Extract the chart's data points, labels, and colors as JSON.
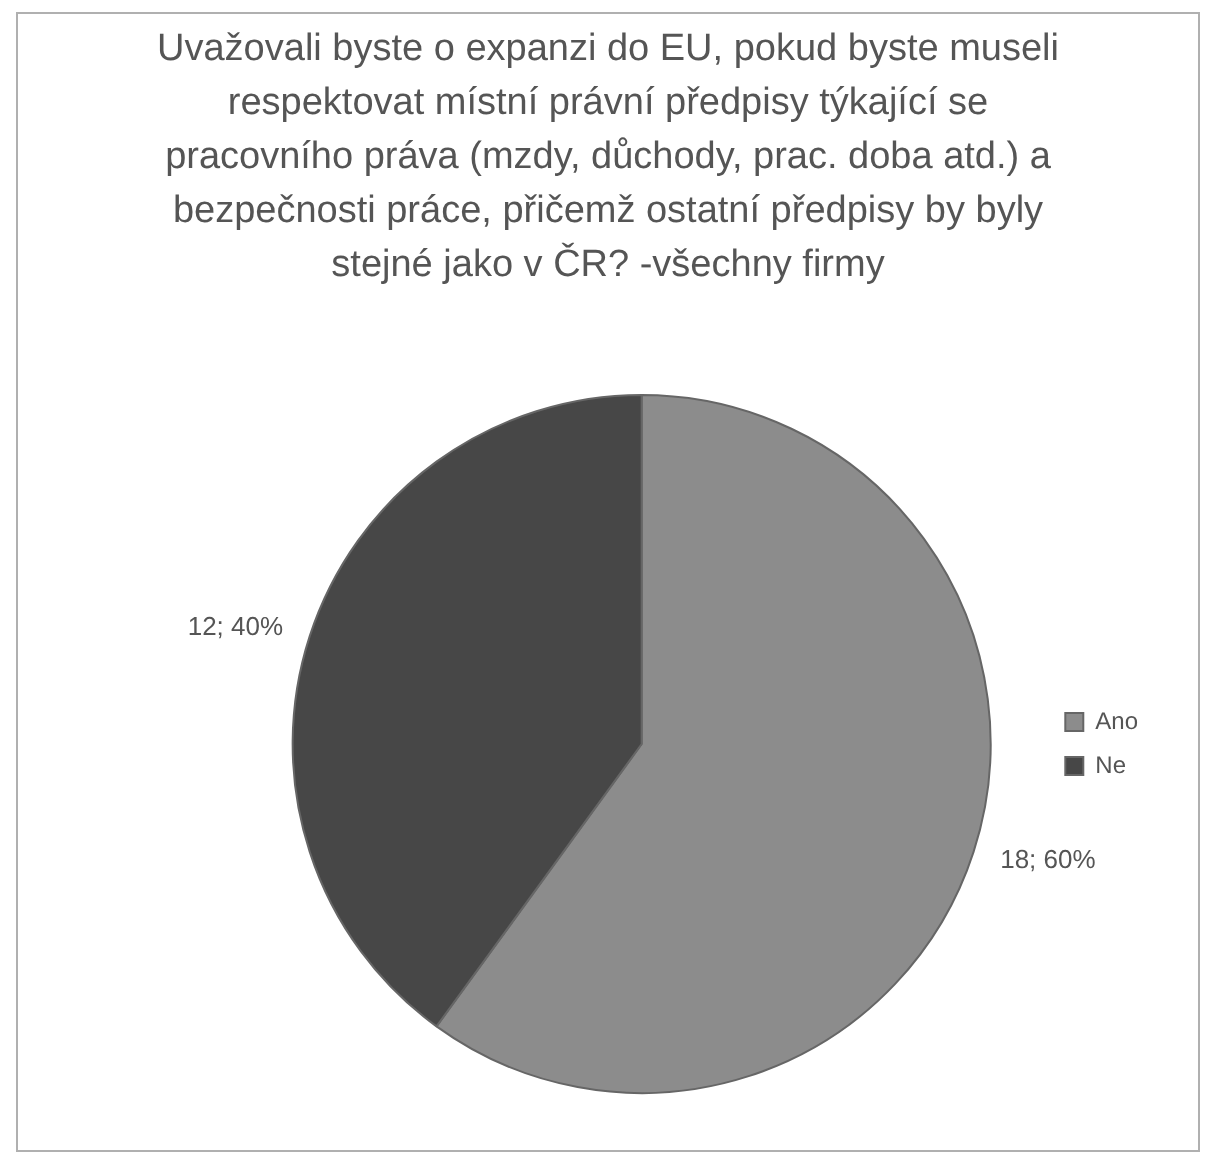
{
  "chart_data": {
    "type": "pie",
    "title": "Uvažovali byste o expanzi do EU, pokud byste museli respektovat místní právní předpisy týkající se pracovního práva (mzdy, důchody, prac. doba atd.) a bezpečnosti práce, přičemž ostatní předpisy by byly stejné jako v ČR? -všechny firmy",
    "categories": [
      "Ano",
      "Ne"
    ],
    "values": [
      18,
      12
    ],
    "colors": [
      "#8c8c8c",
      "#474747"
    ],
    "value_labels": [
      "18; 60%",
      "12; 40%"
    ],
    "legend": "right"
  }
}
